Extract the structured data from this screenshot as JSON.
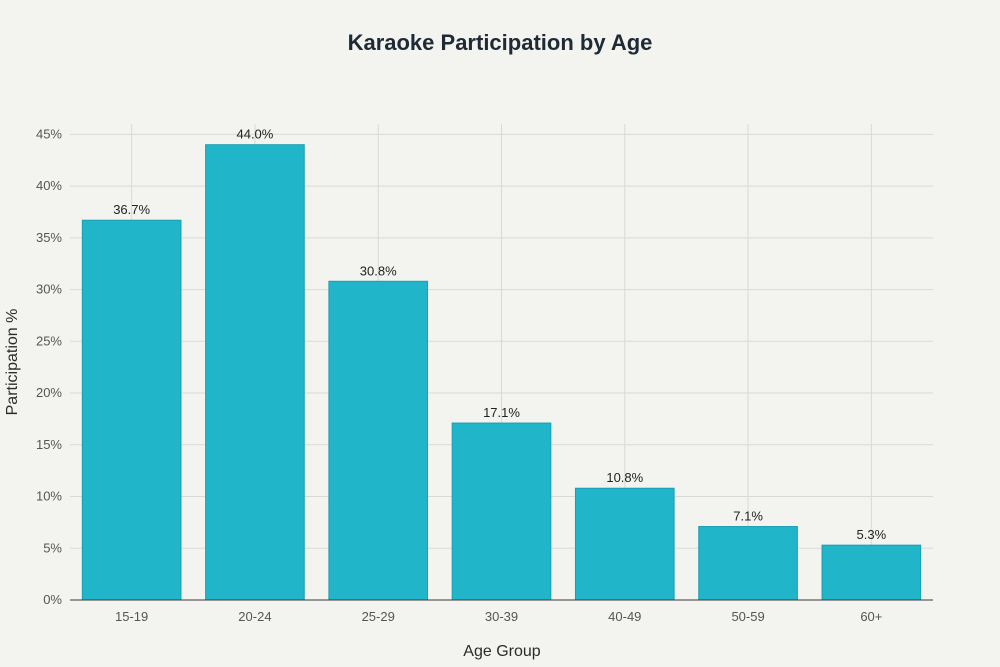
{
  "chart_data": {
    "type": "bar",
    "title": "Karaoke Participation by Age",
    "xlabel": "Age Group",
    "ylabel": "Participation %",
    "categories": [
      "15-19",
      "20-24",
      "25-29",
      "30-39",
      "40-49",
      "50-59",
      "60+"
    ],
    "values": [
      36.7,
      44.0,
      30.8,
      17.1,
      10.8,
      7.1,
      5.3
    ],
    "data_labels": [
      "36.7%",
      "44.0%",
      "30.8%",
      "17.1%",
      "10.8%",
      "7.1%",
      "5.3%"
    ],
    "ylim": [
      0,
      46
    ],
    "yticks": [
      0,
      5,
      10,
      15,
      20,
      25,
      30,
      35,
      40,
      45
    ],
    "ytick_labels": [
      "0%",
      "5%",
      "10%",
      "15%",
      "20%",
      "25%",
      "30%",
      "35%",
      "40%",
      "45%"
    ],
    "grid": true,
    "legend": "none",
    "colors": {
      "bar": "#21b5c9",
      "bar_stroke": "#1a9fb2",
      "background": "#f3f3ef"
    }
  }
}
